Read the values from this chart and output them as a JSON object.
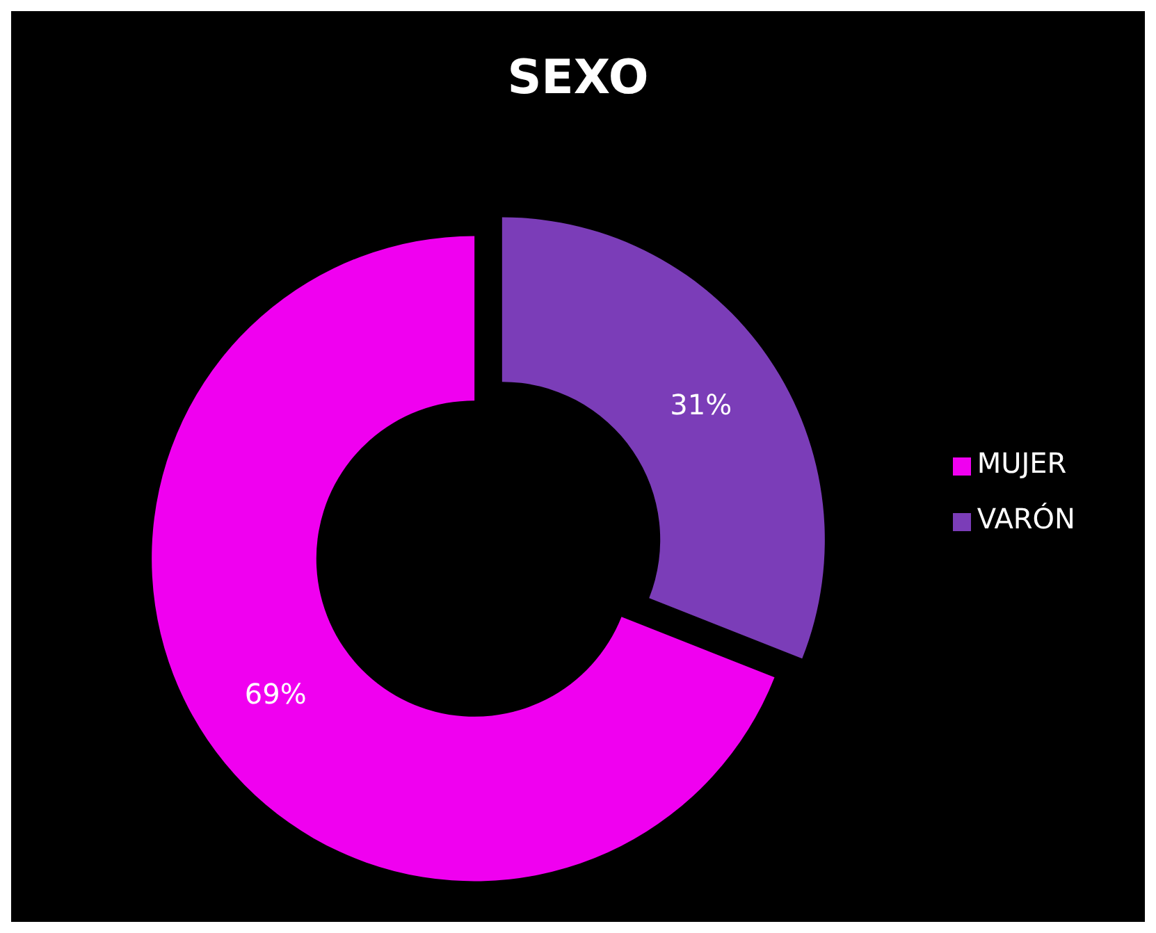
{
  "chart_data": {
    "type": "donut",
    "title": "SEXO",
    "categories": [
      "VARÓN",
      "MUJER"
    ],
    "values": [
      31,
      69
    ],
    "colors": [
      "#7b3db8",
      "#f000f0"
    ],
    "value_labels": [
      "31%",
      "69%"
    ],
    "legend": "right"
  }
}
